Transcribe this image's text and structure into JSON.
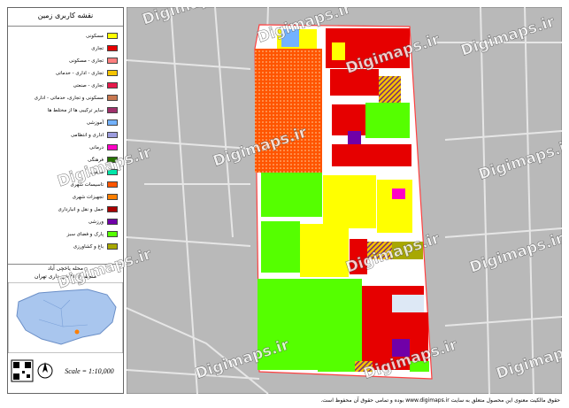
{
  "legend": {
    "title": "نقشه کاربری زمین",
    "items": [
      {
        "label": "مسکونی",
        "color": "#ffff00"
      },
      {
        "label": "تجاری",
        "color": "#e60000"
      },
      {
        "label": "تجاری - مسکونی",
        "color": "#ff7f7f"
      },
      {
        "label": "تجاری - اداری - خدماتی",
        "color": "#f5c400"
      },
      {
        "label": "تجاری - صنعتی",
        "color": "#e6194b"
      },
      {
        "label": "مسکونی و تجاری، خدماتی - اداری",
        "color": "#c87850"
      },
      {
        "label": "سایر ترکیبی ها از مختلط ها",
        "color": "#a0306b"
      },
      {
        "label": "آموزشی",
        "color": "#73b2ff"
      },
      {
        "label": "اداری و انتظامی",
        "color": "#9c9cde"
      },
      {
        "label": "درمانی",
        "color": "#ff00c5"
      },
      {
        "label": "فرهنگی",
        "color": "#267300"
      },
      {
        "label": "مذهبی",
        "color": "#00e6a9"
      },
      {
        "label": "تاسیسات شهری",
        "color": "#ff5500"
      },
      {
        "label": "تجهیزات شهری",
        "color": "#ff7f00"
      },
      {
        "label": "حمل و نقل و انبارداری",
        "color": "#a80000"
      },
      {
        "label": "ورزشی",
        "color": "#7000a8"
      },
      {
        "label": "پارک و فضای سبز",
        "color": "#55ff00"
      },
      {
        "label": "باغ و کشاورزی",
        "color": "#a8a800"
      }
    ]
  },
  "location": {
    "district": "محله یاخچی آباد",
    "region": "منطقه (۱۶) شهرداری تهران"
  },
  "scale": "Scale = 1:10,000",
  "watermark": "Digimaps.ir",
  "footer": "حقوق مالکیت معنوی این محصول متعلق به سایت www.digimaps.ir بوده و تمامی حقوق آن محفوظ است."
}
